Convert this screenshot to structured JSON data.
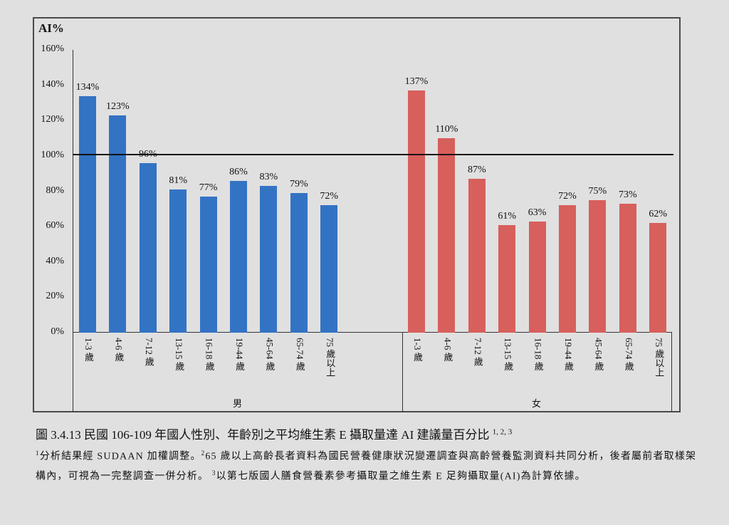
{
  "chart_data": {
    "type": "bar",
    "title": "圖 3.4.13 民國 106-109 年國人性別、年齡別之平均維生素 E 攝取量達 AI 建議量百分比",
    "title_superscript": "1, 2, 3",
    "ylabel": "AI%",
    "xlabel": "",
    "ylim": [
      0,
      160
    ],
    "yticks": [
      "0%",
      "20%",
      "40%",
      "60%",
      "80%",
      "100%",
      "120%",
      "140%",
      "160%"
    ],
    "reference_line": 100,
    "grid": false,
    "legend": "none",
    "groups": [
      {
        "name": "男",
        "color": "#3373c4",
        "categories": [
          "1-3 歲",
          "4-6 歲",
          "7-12 歲",
          "13-15 歲",
          "16-18 歲",
          "19-44 歲",
          "45-64 歲",
          "65-74 歲",
          "75 歲以上"
        ],
        "values": [
          134,
          123,
          96,
          81,
          77,
          86,
          83,
          79,
          72
        ],
        "labels": [
          "134%",
          "123%",
          "96%",
          "81%",
          "77%",
          "86%",
          "83%",
          "79%",
          "72%"
        ]
      },
      {
        "name": "女",
        "color": "#d75f5c",
        "categories": [
          "1-3 歲",
          "4-6 歲",
          "7-12 歲",
          "13-15 歲",
          "16-18 歲",
          "19-44 歲",
          "45-64 歲",
          "65-74 歲",
          "75 歲以上"
        ],
        "values": [
          137,
          110,
          87,
          61,
          63,
          72,
          75,
          73,
          62
        ],
        "labels": [
          "137%",
          "110%",
          "87%",
          "61%",
          "63%",
          "72%",
          "75%",
          "73%",
          "62%"
        ]
      }
    ]
  },
  "caption": {
    "text": "圖 3.4.13 民國 106-109 年國人性別、年齡別之平均維生素 E 攝取量達 AI 建議量百分比",
    "sup": "1, 2, 3"
  },
  "notes": {
    "n1_sup": "1",
    "n1": "分析結果經 SUDAAN 加權調整。",
    "n2_sup": "2",
    "n2": "65 歲以上高齡長者資料為國民營養健康狀況變遷調查與高齡營養監測資料共同分析，後者屬前者取樣架構內，可視為一完整調查一併分析。",
    "n3_sup": "3",
    "n3": "以第七版國人膳食營養素參考攝取量之維生素 E 足夠攝取量(AI)為計算依據。"
  }
}
